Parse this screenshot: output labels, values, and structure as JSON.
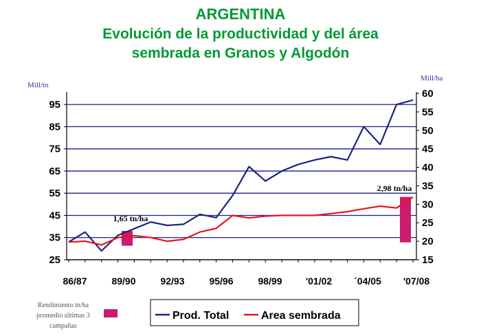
{
  "title": [
    "ARGENTINA",
    "Evolución de la productividad y del área",
    "sembrada en Granos y Algodón"
  ],
  "chart_data": {
    "type": "line",
    "left_axis": {
      "unit": "Mill/tn",
      "min": 25,
      "max": 100,
      "ticks": [
        25,
        35,
        45,
        55,
        65,
        75,
        85,
        95
      ]
    },
    "right_axis": {
      "unit": "Mill/ha",
      "min": 15,
      "max": 60,
      "ticks": [
        15,
        20,
        25,
        30,
        35,
        40,
        45,
        50,
        55,
        60
      ]
    },
    "x_tick_labels": [
      "86/87",
      "89/90",
      "92/93",
      "95/96",
      "98/99",
      "'01/02",
      "´04/05",
      "'07/08"
    ],
    "x": [
      "86/87",
      "87/88",
      "88/89",
      "89/90",
      "90/91",
      "91/92",
      "92/93",
      "93/94",
      "94/95",
      "95/96",
      "96/97",
      "97/98",
      "98/99",
      "99/00",
      "00/01",
      "01/02",
      "02/03",
      "03/04",
      "04/05",
      "05/06",
      "06/07",
      "07/08"
    ],
    "grid": true,
    "series": [
      {
        "name": "Prod. Total",
        "axis": "left",
        "color": "#1a237e",
        "values": [
          33,
          37.5,
          29,
          36,
          39,
          42,
          40.5,
          41,
          45.5,
          44,
          54,
          67,
          60.5,
          65,
          68,
          70,
          71.5,
          70,
          85,
          77,
          95,
          97
        ]
      },
      {
        "name": "Area sembrada",
        "axis": "right",
        "color": "#e8141b",
        "values": [
          19.8,
          20,
          19,
          21,
          21.5,
          21,
          20,
          20.5,
          22.5,
          23.5,
          27,
          26.3,
          26.8,
          27,
          27,
          27,
          27.5,
          28,
          28.8,
          29.5,
          29,
          32
        ]
      }
    ],
    "annotations": [
      {
        "text": "1,65 tn/ha",
        "x": "89/90",
        "bar_range_right": [
          18.8,
          22.8
        ]
      },
      {
        "text": "2,98 tn/ha",
        "x": "07/08",
        "bar_range_right": [
          19.7,
          32
        ]
      }
    ],
    "bar_color": "#cc1a6e",
    "side_legend": [
      "Rendimiento tn/ha",
      "promedio últimas 3",
      "campañas"
    ],
    "legend_position": "bottom"
  }
}
